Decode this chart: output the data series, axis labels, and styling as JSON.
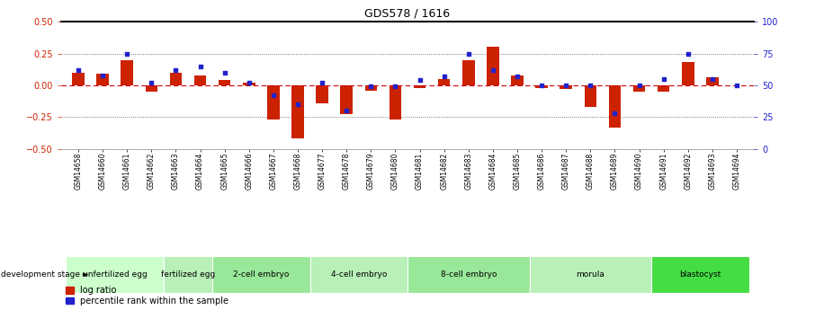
{
  "title": "GDS578 / 1616",
  "samples": [
    "GSM14658",
    "GSM14660",
    "GSM14661",
    "GSM14662",
    "GSM14663",
    "GSM14664",
    "GSM14665",
    "GSM14666",
    "GSM14667",
    "GSM14668",
    "GSM14677",
    "GSM14678",
    "GSM14679",
    "GSM14680",
    "GSM14681",
    "GSM14682",
    "GSM14683",
    "GSM14684",
    "GSM14685",
    "GSM14686",
    "GSM14687",
    "GSM14688",
    "GSM14689",
    "GSM14690",
    "GSM14691",
    "GSM14692",
    "GSM14693",
    "GSM14694"
  ],
  "log_ratio": [
    0.1,
    0.09,
    0.2,
    -0.05,
    0.1,
    0.08,
    0.04,
    0.02,
    -0.27,
    -0.42,
    -0.14,
    -0.23,
    -0.04,
    -0.27,
    -0.02,
    0.05,
    0.2,
    0.3,
    0.08,
    -0.02,
    -0.03,
    -0.17,
    -0.33,
    -0.05,
    -0.05,
    0.18,
    0.06,
    0.0
  ],
  "percentile": [
    0.62,
    0.58,
    0.75,
    0.52,
    0.62,
    0.65,
    0.6,
    0.52,
    0.42,
    0.35,
    0.52,
    0.3,
    0.49,
    0.49,
    0.54,
    0.57,
    0.75,
    0.62,
    0.57,
    0.5,
    0.5,
    0.5,
    0.28,
    0.5,
    0.55,
    0.75,
    0.55,
    0.5
  ],
  "stages": [
    {
      "label": "unfertilized egg",
      "start": 0,
      "end": 4
    },
    {
      "label": "fertilized egg",
      "start": 4,
      "end": 6
    },
    {
      "label": "2-cell embryo",
      "start": 6,
      "end": 10
    },
    {
      "label": "4-cell embryo",
      "start": 10,
      "end": 14
    },
    {
      "label": "8-cell embryo",
      "start": 14,
      "end": 19
    },
    {
      "label": "morula",
      "start": 19,
      "end": 24
    },
    {
      "label": "blastocyst",
      "start": 24,
      "end": 28
    }
  ],
  "stage_colors": [
    "#ccffcc",
    "#b8f0b8",
    "#99e899",
    "#b8f0b8",
    "#99e899",
    "#b8f0b8",
    "#44dd44"
  ],
  "ylim": [
    -0.5,
    0.5
  ],
  "yticks_left": [
    -0.5,
    -0.25,
    0.0,
    0.25,
    0.5
  ],
  "yticks_right": [
    0,
    25,
    50,
    75,
    100
  ],
  "bar_color": "#cc2200",
  "dot_color": "#2222cc",
  "zero_line_color": "#cc0000",
  "bg_color": "#ffffff"
}
